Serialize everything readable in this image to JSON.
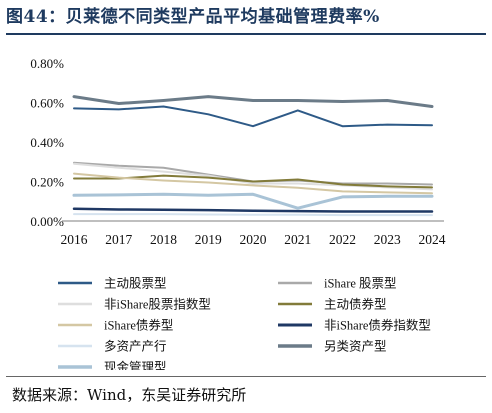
{
  "title": "图44：贝莱德不同类型产品平均基础管理费率%",
  "source": "数据来源：Wind，东吴证券研究所",
  "chart_data": {
    "type": "line",
    "x": [
      "2016",
      "2017",
      "2018",
      "2019",
      "2020",
      "2021",
      "2022",
      "2023",
      "2024"
    ],
    "ylim": [
      0,
      0.8
    ],
    "yticks": [
      0,
      0.2,
      0.4,
      0.6,
      0.8
    ],
    "ytick_labels": [
      "0.00%",
      "0.20%",
      "0.40%",
      "0.60%",
      "0.80%"
    ],
    "grid": "none",
    "legend_position": "bottom",
    "series": [
      {
        "name": "主动股票型",
        "color": "#2e5a87",
        "width": 2,
        "values": [
          0.57,
          0.565,
          0.58,
          0.54,
          0.48,
          0.56,
          0.48,
          0.488,
          0.485
        ]
      },
      {
        "name": "iShare 股票型",
        "color": "#a9a9a9",
        "width": 2,
        "values": [
          0.295,
          0.28,
          0.27,
          0.235,
          0.2,
          0.205,
          0.19,
          0.19,
          0.185
        ]
      },
      {
        "name": "非iShare股票指数型",
        "color": "#dedede",
        "width": 2,
        "values": [
          0.29,
          0.27,
          0.25,
          0.23,
          0.19,
          0.19,
          0.18,
          0.17,
          0.16
        ]
      },
      {
        "name": "主动债券型",
        "color": "#827b3a",
        "width": 2,
        "values": [
          0.215,
          0.215,
          0.23,
          0.22,
          0.2,
          0.21,
          0.185,
          0.175,
          0.17
        ]
      },
      {
        "name": "iShare债券型",
        "color": "#d4c7a3",
        "width": 2,
        "values": [
          0.24,
          0.22,
          0.205,
          0.195,
          0.18,
          0.168,
          0.15,
          0.145,
          0.14
        ]
      },
      {
        "name": "非iShare债券指数型",
        "color": "#1f3864",
        "width": 2.5,
        "values": [
          0.062,
          0.058,
          0.057,
          0.055,
          0.052,
          0.05,
          0.048,
          0.048,
          0.048
        ]
      },
      {
        "name": "多资产产行",
        "color": "#d6e3ef",
        "width": 2,
        "values": [
          0.035,
          0.035,
          0.035,
          0.033,
          0.032,
          0.032,
          0.03,
          0.03,
          0.03
        ]
      },
      {
        "name": "另类资产型",
        "color": "#6b7b88",
        "width": 3,
        "values": [
          0.63,
          0.595,
          0.61,
          0.63,
          0.61,
          0.61,
          0.605,
          0.61,
          0.58
        ]
      },
      {
        "name": "现金管理型",
        "color": "#a9c3d6",
        "width": 3,
        "values": [
          0.13,
          0.132,
          0.135,
          0.13,
          0.135,
          0.065,
          0.122,
          0.125,
          0.125
        ]
      }
    ]
  }
}
